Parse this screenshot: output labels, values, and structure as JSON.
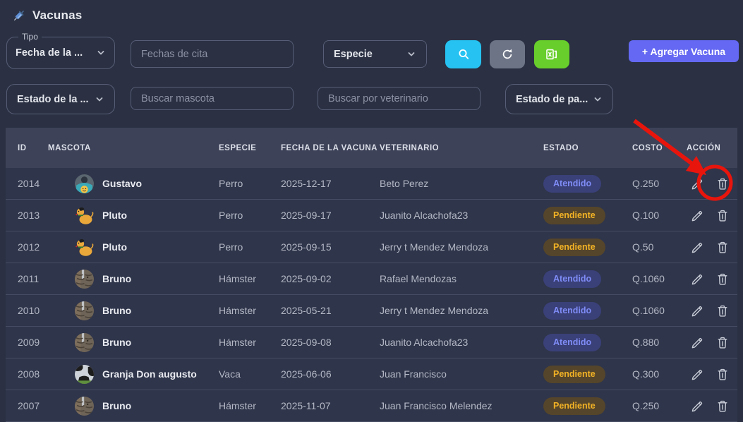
{
  "header": {
    "title": "Vacunas",
    "icon": "syringe-icon"
  },
  "filters": {
    "tipo": {
      "label": "Tipo",
      "value": "Fecha de la ..."
    },
    "fechas_cita": {
      "placeholder": "Fechas de cita",
      "value": ""
    },
    "especie": {
      "value": "Especie"
    },
    "estado_vacuna": {
      "value": "Estado de la ..."
    },
    "buscar_mascota": {
      "placeholder": "Buscar mascota",
      "value": ""
    },
    "buscar_veterinario": {
      "placeholder": "Buscar por veterinario",
      "value": ""
    },
    "estado_pago": {
      "value": "Estado de pa..."
    }
  },
  "toolbar": {
    "search_icon": "magnifier-icon",
    "refresh_icon": "refresh-icon",
    "export_icon": "excel-icon",
    "add_label": "+ Agregar Vacuna"
  },
  "table": {
    "columns": [
      "ID",
      "MASCOTA",
      "ESPECIE",
      "FECHA DE LA VACUNA",
      "VETERINARIO",
      "ESTADO",
      "COSTO",
      "ACCIÓN"
    ],
    "rows": [
      {
        "id": "2014",
        "mascota": "Gustavo",
        "avatar": "person-photo",
        "especie": "Perro",
        "fecha": "2025-12-17",
        "veterinario": "Beto Perez",
        "estado": "Atendido",
        "costo": "Q.250"
      },
      {
        "id": "2013",
        "mascota": "Pluto",
        "avatar": "dog-cartoon",
        "especie": "Perro",
        "fecha": "2025-09-17",
        "veterinario": "Juanito Alcachofa23",
        "estado": "Pendiente",
        "costo": "Q.100"
      },
      {
        "id": "2012",
        "mascota": "Pluto",
        "avatar": "dog-cartoon",
        "especie": "Perro",
        "fecha": "2025-09-15",
        "veterinario": "Jerry t Mendez Mendoza",
        "estado": "Pendiente",
        "costo": "Q.50"
      },
      {
        "id": "2011",
        "mascota": "Bruno",
        "avatar": "cat-photo",
        "especie": "Hámster",
        "fecha": "2025-09-02",
        "veterinario": "Rafael Mendozas",
        "estado": "Atendido",
        "costo": "Q.1060"
      },
      {
        "id": "2010",
        "mascota": "Bruno",
        "avatar": "cat-photo",
        "especie": "Hámster",
        "fecha": "2025-05-21",
        "veterinario": "Jerry t Mendez Mendoza",
        "estado": "Atendido",
        "costo": "Q.1060"
      },
      {
        "id": "2009",
        "mascota": "Bruno",
        "avatar": "cat-photo",
        "especie": "Hámster",
        "fecha": "2025-09-08",
        "veterinario": "Juanito Alcachofa23",
        "estado": "Atendido",
        "costo": "Q.880"
      },
      {
        "id": "2008",
        "mascota": "Granja Don augusto",
        "avatar": "cow-photo",
        "especie": "Vaca",
        "fecha": "2025-06-06",
        "veterinario": "Juan Francisco",
        "estado": "Pendiente",
        "costo": "Q.300"
      },
      {
        "id": "2007",
        "mascota": "Bruno",
        "avatar": "cat-photo",
        "especie": "Hámster",
        "fecha": "2025-11-07",
        "veterinario": "Juan Francisco Melendez",
        "estado": "Pendiente",
        "costo": "Q.250"
      }
    ]
  },
  "annotation": {
    "description": "red arrow and circle highlighting the delete (trash) action of row 2014",
    "color": "#e8150d"
  },
  "colors": {
    "page_bg": "#2b3143",
    "table_header_bg": "#3d4258",
    "row_bg": "#2f354a",
    "accent_primary": "#6468f2",
    "btn_search": "#26c3f2",
    "btn_refresh": "#6d7486",
    "btn_excel": "#68ce2b",
    "badge_atendido_text": "#7f8cf6",
    "badge_pendiente_text": "#f2b225"
  }
}
